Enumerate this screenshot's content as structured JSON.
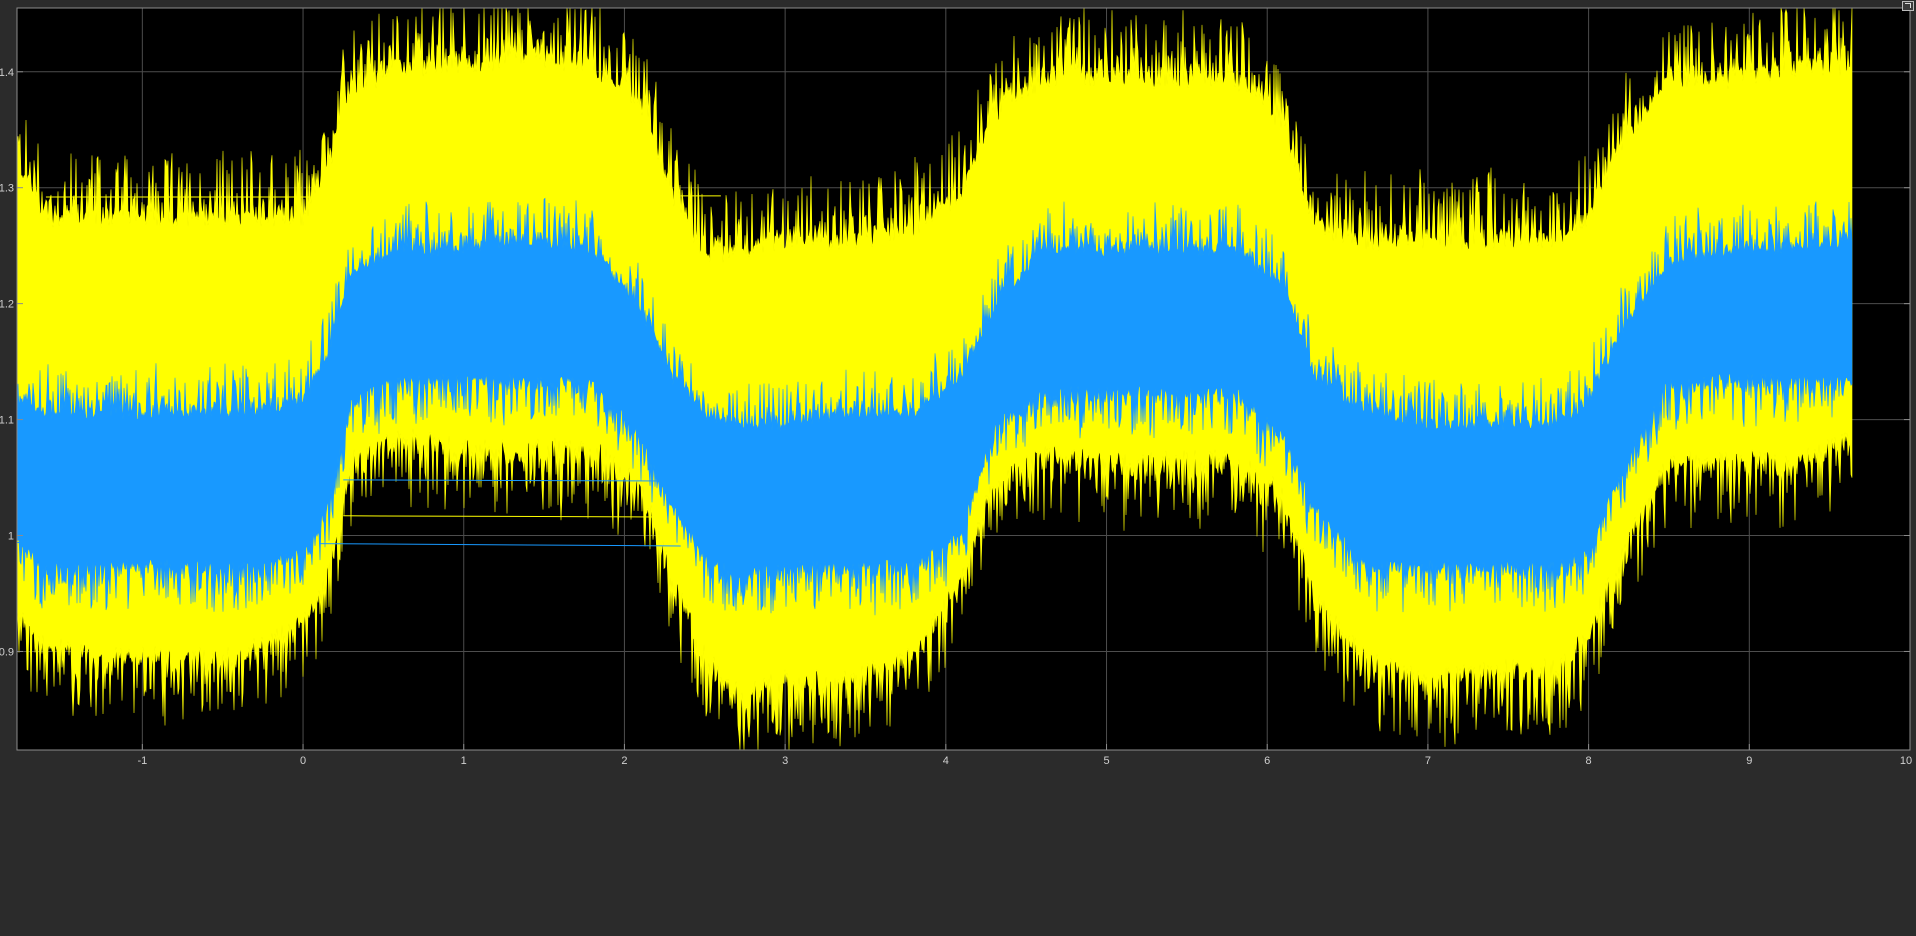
{
  "window": {
    "corner_button_label": ""
  },
  "colors": {
    "background": "#2b2b2b",
    "axes_background": "#000000",
    "axes_border": "#8c8c8c",
    "grid": "#4d4d4d",
    "tick_labels": "#d0d0d0",
    "series_yellow": "#ffff00",
    "series_blue": "#1899ff"
  },
  "chart_data": {
    "type": "line",
    "title": "",
    "xlabel": "",
    "ylabel": "",
    "xlim": [
      -1.78,
      10
    ],
    "ylim": [
      0.815,
      1.455
    ],
    "grid": true,
    "legend": "none",
    "x_ticks": [
      -1,
      0,
      1,
      2,
      3,
      4,
      5,
      6,
      7,
      8,
      9,
      10
    ],
    "x_tick_labels": [
      "-1",
      "0",
      "1",
      "2",
      "3",
      "4",
      "5",
      "6",
      "7",
      "8",
      "9",
      "10"
    ],
    "y_ticks": [
      0.9,
      1.0,
      1.1,
      1.2,
      1.3,
      1.4
    ],
    "y_tick_labels": [
      "0.9",
      "1",
      "1.1",
      "1.2",
      "1.3",
      "1.4"
    ],
    "series": [
      {
        "color": "#ffff00",
        "description_values": "envelope (x, low, high)",
        "x": [
          -1.78,
          -1.6,
          -1.2,
          -0.8,
          -0.4,
          0.0,
          0.15,
          0.3,
          0.6,
          1.0,
          1.4,
          1.8,
          2.1,
          2.3,
          2.5,
          2.7,
          3.0,
          3.4,
          3.8,
          4.1,
          4.3,
          4.6,
          5.0,
          5.4,
          5.8,
          6.1,
          6.3,
          6.6,
          7.0,
          7.4,
          7.8,
          8.0,
          8.2,
          8.5,
          8.9,
          9.3,
          9.64
        ],
        "low": [
          0.93,
          0.9,
          0.89,
          0.89,
          0.89,
          0.92,
          0.96,
          1.06,
          1.08,
          1.07,
          1.07,
          1.07,
          1.04,
          0.96,
          0.89,
          0.86,
          0.87,
          0.87,
          0.89,
          0.96,
          1.04,
          1.07,
          1.06,
          1.06,
          1.06,
          1.03,
          0.94,
          0.89,
          0.87,
          0.88,
          0.88,
          0.91,
          0.98,
          1.06,
          1.06,
          1.06,
          1.08
        ],
        "high": [
          1.33,
          1.28,
          1.28,
          1.28,
          1.28,
          1.28,
          1.32,
          1.39,
          1.41,
          1.41,
          1.42,
          1.41,
          1.38,
          1.3,
          1.25,
          1.25,
          1.26,
          1.26,
          1.27,
          1.3,
          1.37,
          1.4,
          1.4,
          1.4,
          1.4,
          1.36,
          1.27,
          1.26,
          1.26,
          1.26,
          1.26,
          1.28,
          1.34,
          1.4,
          1.4,
          1.41,
          1.41
        ]
      },
      {
        "color": "#1899ff",
        "description_values": "envelope (x, low, high)",
        "x": [
          -1.78,
          -1.6,
          -1.2,
          -0.8,
          -0.4,
          0.0,
          0.15,
          0.3,
          0.6,
          1.0,
          1.4,
          1.8,
          2.1,
          2.3,
          2.5,
          2.7,
          3.0,
          3.4,
          3.8,
          4.1,
          4.3,
          4.6,
          5.0,
          5.4,
          5.8,
          6.1,
          6.3,
          6.6,
          7.0,
          7.4,
          7.8,
          8.0,
          8.2,
          8.5,
          8.9,
          9.3,
          9.64
        ],
        "low": [
          0.99,
          0.97,
          0.97,
          0.97,
          0.97,
          0.98,
          1.02,
          1.11,
          1.13,
          1.13,
          1.13,
          1.13,
          1.08,
          1.02,
          0.98,
          0.96,
          0.97,
          0.97,
          0.97,
          1.0,
          1.09,
          1.12,
          1.12,
          1.12,
          1.12,
          1.08,
          1.02,
          0.97,
          0.97,
          0.97,
          0.97,
          0.98,
          1.05,
          1.13,
          1.13,
          1.13,
          1.13
        ],
        "high": [
          1.12,
          1.11,
          1.11,
          1.11,
          1.11,
          1.12,
          1.16,
          1.23,
          1.25,
          1.25,
          1.26,
          1.25,
          1.2,
          1.14,
          1.11,
          1.1,
          1.1,
          1.11,
          1.11,
          1.14,
          1.2,
          1.25,
          1.25,
          1.25,
          1.25,
          1.22,
          1.14,
          1.11,
          1.1,
          1.1,
          1.1,
          1.12,
          1.18,
          1.24,
          1.25,
          1.25,
          1.26
        ]
      }
    ],
    "annotations": [
      {
        "color": "#ffff00",
        "x": [
          -1.6,
          0.07
        ],
        "y": [
          1.292,
          1.292
        ]
      },
      {
        "color": "#ffff00",
        "x": [
          2.35,
          2.6
        ],
        "y": [
          1.293,
          1.293
        ]
      },
      {
        "color": "#1899ff",
        "x": [
          0.25,
          2.3
        ],
        "y": [
          1.048,
          1.047
        ]
      },
      {
        "color": "#ffff00",
        "x": [
          0.25,
          2.2
        ],
        "y": [
          1.017,
          1.016
        ]
      },
      {
        "color": "#1899ff",
        "x": [
          0.1,
          2.35
        ],
        "y": [
          0.993,
          0.991
        ]
      },
      {
        "color": "#1899ff",
        "x": [
          -1.78,
          -1.5
        ],
        "y": [
          0.994,
          0.994
        ]
      }
    ]
  }
}
